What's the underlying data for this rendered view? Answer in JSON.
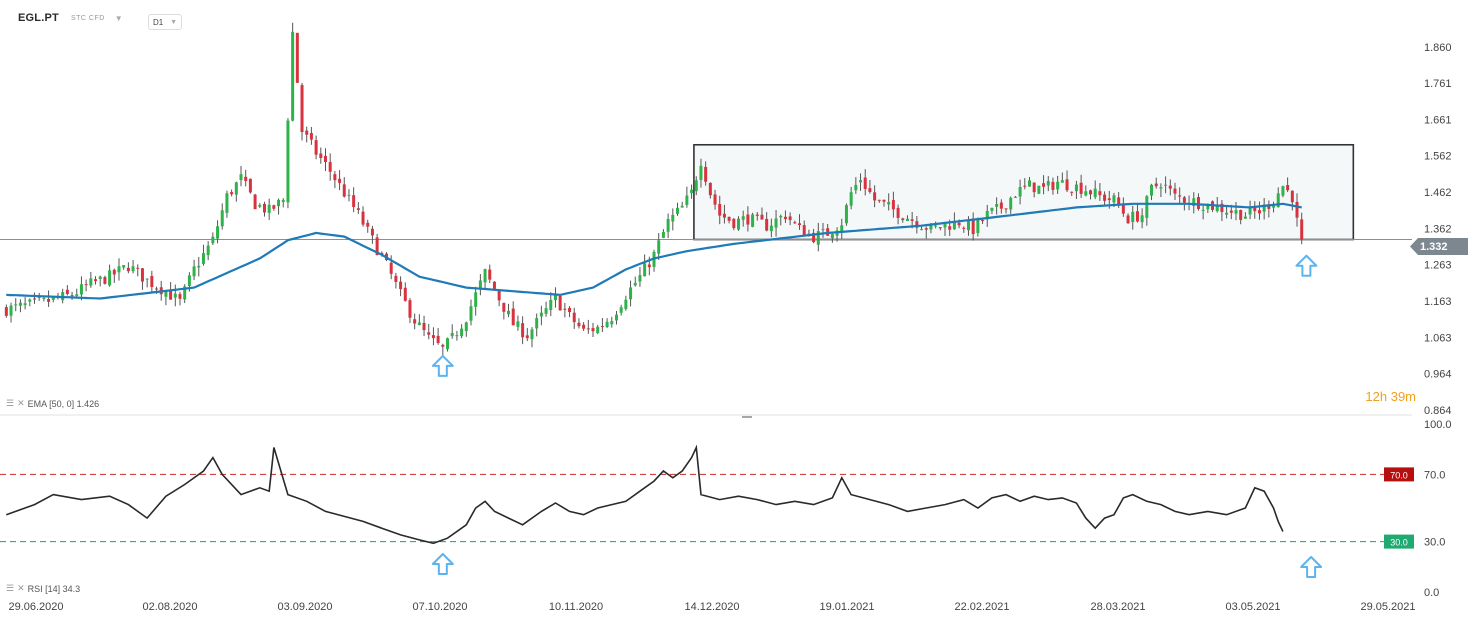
{
  "header": {
    "symbol": "EGL.PT",
    "subtitle": "STC CFD",
    "timeframe": "D1"
  },
  "indicators": {
    "ema_label": "EMA [50, 0] 1.426",
    "rsi_label": "RSI [14] 34.3"
  },
  "timer": "12h 39m",
  "price_tag": "1.332",
  "colors": {
    "up": "#2eb24a",
    "down": "#d9323f",
    "ema": "#1f7ab8",
    "rsi": "#2a2a2a",
    "level70": "#c92a2a",
    "level30": "#1f9e6e",
    "arrow": "#5db3ee"
  },
  "chart_data": [
    {
      "type": "candlestick",
      "title": "EGL.PT",
      "timeframe": "D1",
      "y_ticks": [
        1.86,
        1.761,
        1.661,
        1.562,
        1.462,
        1.362,
        1.263,
        1.163,
        1.063,
        0.964,
        0.864
      ],
      "ylim": [
        0.864,
        1.94
      ],
      "x_ticks": [
        "29.06.2020",
        "02.08.2020",
        "03.09.2020",
        "07.10.2020",
        "10.11.2020",
        "14.12.2020",
        "19.01.2021",
        "22.02.2021",
        "28.03.2021",
        "03.05.2021",
        "29.05.2021"
      ],
      "current_price": 1.332,
      "ema": {
        "label": "EMA [50, 0]",
        "value": 1.426
      },
      "close_path": [
        [
          0,
          1.14
        ],
        [
          8,
          1.16
        ],
        [
          14,
          1.18
        ],
        [
          18,
          1.21
        ],
        [
          22,
          1.23
        ],
        [
          26,
          1.26
        ],
        [
          30,
          1.22
        ],
        [
          34,
          1.19
        ],
        [
          37,
          1.16
        ],
        [
          40,
          1.25
        ],
        [
          44,
          1.33
        ],
        [
          47,
          1.45
        ],
        [
          50,
          1.5
        ],
        [
          53,
          1.43
        ],
        [
          56,
          1.41
        ],
        [
          59,
          1.44
        ],
        [
          61,
          1.9
        ],
        [
          63,
          1.63
        ],
        [
          66,
          1.57
        ],
        [
          69,
          1.52
        ],
        [
          72,
          1.46
        ],
        [
          75,
          1.4
        ],
        [
          78,
          1.33
        ],
        [
          81,
          1.26
        ],
        [
          84,
          1.18
        ],
        [
          87,
          1.11
        ],
        [
          90,
          1.06
        ],
        [
          93,
          1.03
        ],
        [
          95,
          1.06
        ],
        [
          98,
          1.12
        ],
        [
          100,
          1.18
        ],
        [
          102,
          1.24
        ],
        [
          105,
          1.17
        ],
        [
          108,
          1.1
        ],
        [
          111,
          1.07
        ],
        [
          114,
          1.12
        ],
        [
          117,
          1.17
        ],
        [
          120,
          1.12
        ],
        [
          123,
          1.08
        ],
        [
          126,
          1.09
        ],
        [
          129,
          1.12
        ],
        [
          132,
          1.18
        ],
        [
          135,
          1.23
        ],
        [
          138,
          1.29
        ],
        [
          141,
          1.38
        ],
        [
          144,
          1.42
        ],
        [
          146,
          1.46
        ],
        [
          148,
          1.55
        ],
        [
          150,
          1.46
        ],
        [
          152,
          1.4
        ],
        [
          155,
          1.38
        ],
        [
          158,
          1.39
        ],
        [
          162,
          1.37
        ],
        [
          166,
          1.4
        ],
        [
          169,
          1.36
        ],
        [
          172,
          1.34
        ],
        [
          175,
          1.35
        ],
        [
          178,
          1.38
        ],
        [
          180,
          1.46
        ],
        [
          182,
          1.5
        ],
        [
          185,
          1.44
        ],
        [
          188,
          1.42
        ],
        [
          191,
          1.4
        ],
        [
          194,
          1.38
        ],
        [
          197,
          1.36
        ],
        [
          200,
          1.37
        ],
        [
          203,
          1.38
        ],
        [
          206,
          1.36
        ],
        [
          209,
          1.4
        ],
        [
          212,
          1.42
        ],
        [
          215,
          1.46
        ],
        [
          218,
          1.48
        ],
        [
          221,
          1.47
        ],
        [
          224,
          1.49
        ],
        [
          227,
          1.48
        ],
        [
          230,
          1.47
        ],
        [
          233,
          1.45
        ],
        [
          236,
          1.44
        ],
        [
          239,
          1.39
        ],
        [
          242,
          1.4
        ],
        [
          244,
          1.47
        ],
        [
          246,
          1.49
        ],
        [
          249,
          1.45
        ],
        [
          252,
          1.44
        ],
        [
          255,
          1.43
        ],
        [
          258,
          1.42
        ],
        [
          261,
          1.41
        ],
        [
          264,
          1.4
        ],
        [
          267,
          1.41
        ],
        [
          270,
          1.44
        ],
        [
          272,
          1.48
        ],
        [
          274,
          1.45
        ],
        [
          275,
          1.38
        ],
        [
          276,
          1.3
        ]
      ],
      "ema_path": [
        [
          0,
          1.18
        ],
        [
          20,
          1.17
        ],
        [
          40,
          1.2
        ],
        [
          54,
          1.28
        ],
        [
          60,
          1.33
        ],
        [
          66,
          1.35
        ],
        [
          72,
          1.34
        ],
        [
          80,
          1.29
        ],
        [
          88,
          1.23
        ],
        [
          98,
          1.2
        ],
        [
          108,
          1.19
        ],
        [
          118,
          1.18
        ],
        [
          125,
          1.2
        ],
        [
          132,
          1.25
        ],
        [
          138,
          1.28
        ],
        [
          145,
          1.3
        ],
        [
          155,
          1.32
        ],
        [
          175,
          1.35
        ],
        [
          195,
          1.37
        ],
        [
          215,
          1.4
        ],
        [
          228,
          1.42
        ],
        [
          240,
          1.43
        ],
        [
          252,
          1.43
        ],
        [
          265,
          1.42
        ],
        [
          272,
          1.43
        ],
        [
          276,
          1.42
        ]
      ],
      "annotations": [
        {
          "type": "rectangle",
          "x": [
            147,
            287
          ],
          "y": [
            1.332,
            1.592
          ]
        },
        {
          "type": "horizontal_line",
          "y": 1.332
        },
        {
          "type": "arrow_up",
          "x": 93,
          "y": 0.985
        },
        {
          "type": "arrow_up",
          "x": 277,
          "y": 1.26
        }
      ]
    },
    {
      "type": "line",
      "title": "RSI [14]",
      "value": 34.3,
      "y_ticks": [
        100.0,
        70.0,
        30.0,
        0.0
      ],
      "ylim": [
        0,
        100
      ],
      "levels": [
        70.0,
        30.0
      ],
      "level_labels": [
        "70.0",
        "30.0"
      ],
      "series": [
        {
          "name": "RSI [14]",
          "points": [
            [
              0,
              46
            ],
            [
              6,
              52
            ],
            [
              10,
              58
            ],
            [
              16,
              55
            ],
            [
              22,
              57
            ],
            [
              26,
              52
            ],
            [
              30,
              44
            ],
            [
              34,
              57
            ],
            [
              38,
              64
            ],
            [
              42,
              72
            ],
            [
              44,
              80
            ],
            [
              46,
              70
            ],
            [
              50,
              58
            ],
            [
              54,
              62
            ],
            [
              56,
              60
            ],
            [
              57,
              86
            ],
            [
              60,
              58
            ],
            [
              64,
              54
            ],
            [
              68,
              48
            ],
            [
              72,
              45
            ],
            [
              76,
              42
            ],
            [
              80,
              38
            ],
            [
              84,
              34
            ],
            [
              88,
              31
            ],
            [
              91,
              29
            ],
            [
              94,
              32
            ],
            [
              98,
              40
            ],
            [
              100,
              50
            ],
            [
              102,
              54
            ],
            [
              104,
              48
            ],
            [
              107,
              44
            ],
            [
              110,
              40
            ],
            [
              114,
              48
            ],
            [
              117,
              53
            ],
            [
              120,
              48
            ],
            [
              123,
              46
            ],
            [
              126,
              50
            ],
            [
              129,
              52
            ],
            [
              132,
              54
            ],
            [
              135,
              60
            ],
            [
              138,
              66
            ],
            [
              140,
              72
            ],
            [
              142,
              68
            ],
            [
              144,
              72
            ],
            [
              146,
              80
            ],
            [
              147,
              86
            ],
            [
              148,
              58
            ],
            [
              152,
              55
            ],
            [
              156,
              57
            ],
            [
              160,
              55
            ],
            [
              164,
              52
            ],
            [
              168,
              54
            ],
            [
              172,
              52
            ],
            [
              176,
              56
            ],
            [
              178,
              68
            ],
            [
              180,
              58
            ],
            [
              184,
              55
            ],
            [
              188,
              52
            ],
            [
              192,
              48
            ],
            [
              196,
              50
            ],
            [
              200,
              52
            ],
            [
              204,
              55
            ],
            [
              207,
              50
            ],
            [
              210,
              56
            ],
            [
              213,
              58
            ],
            [
              216,
              54
            ],
            [
              219,
              57
            ],
            [
              222,
              55
            ],
            [
              225,
              56
            ],
            [
              228,
              53
            ],
            [
              230,
              44
            ],
            [
              232,
              38
            ],
            [
              234,
              44
            ],
            [
              236,
              46
            ],
            [
              238,
              56
            ],
            [
              240,
              58
            ],
            [
              243,
              54
            ],
            [
              246,
              52
            ],
            [
              249,
              48
            ],
            [
              252,
              46
            ],
            [
              256,
              48
            ],
            [
              260,
              46
            ],
            [
              264,
              50
            ],
            [
              266,
              62
            ],
            [
              268,
              60
            ],
            [
              270,
              50
            ],
            [
              271,
              42
            ],
            [
              272,
              36
            ]
          ]
        }
      ]
    }
  ]
}
